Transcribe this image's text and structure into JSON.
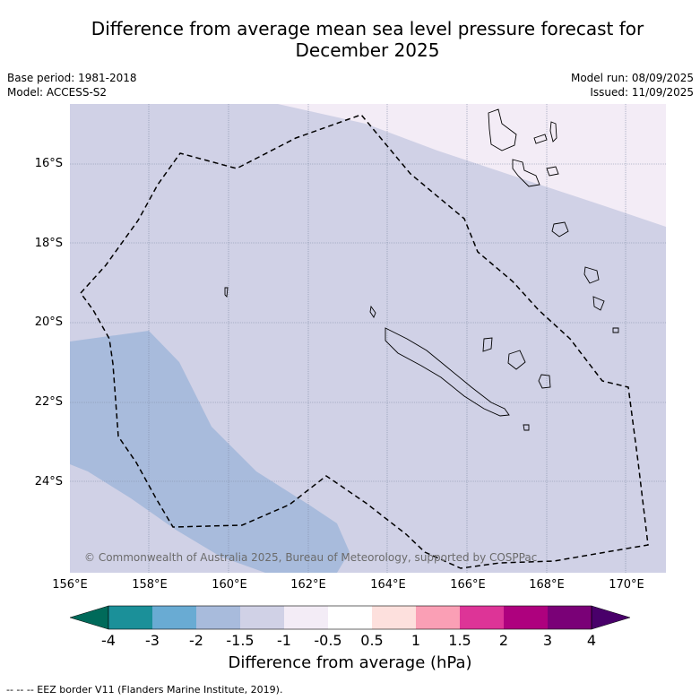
{
  "header": {
    "title_line1": "Difference from average mean sea level pressure forecast for",
    "title_line2": "December 2025",
    "base_period": "Base period: 1981-2018",
    "model": "Model: ACCESS-S2",
    "model_run": "Model run: 08/09/2025",
    "issued": "Issued: 11/09/2025"
  },
  "map": {
    "copyright": "© Commonwealth of Australia 2025, Bureau of Meteorology, supported by COSPPac",
    "lat_labels": [
      "16°S",
      "18°S",
      "20°S",
      "22°S",
      "24°S"
    ],
    "lon_labels": [
      "156°E",
      "158°E",
      "160°E",
      "162°E",
      "164°E",
      "166°E",
      "168°E",
      "170°E"
    ]
  },
  "colorbar": {
    "title": "Difference from average (hPa)",
    "tick_labels": [
      "-4",
      "-3",
      "-2",
      "-1.5",
      "-1",
      "-0.5",
      "0.5",
      "1",
      "1.5",
      "2",
      "3",
      "4"
    ],
    "colors": [
      "#006a5a",
      "#1b9099",
      "#69abd3",
      "#a8bbdc",
      "#d0d1e6",
      "#f3ecf6",
      "#ffffff",
      "#fde0dd",
      "#fa9fb5",
      "#dd3497",
      "#ae017e",
      "#7a0177",
      "#49006a"
    ]
  },
  "footer": {
    "legend": "--  --  -- EEZ border V11 (Flanders Marine Institute, 2019)."
  }
}
